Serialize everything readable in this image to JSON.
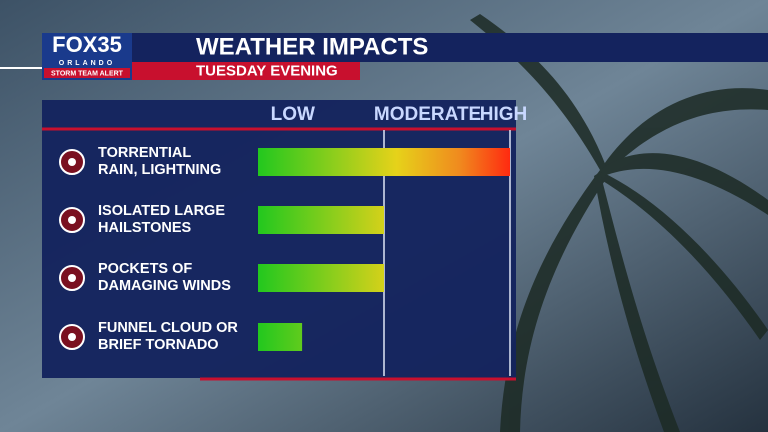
{
  "logo": {
    "brand": "FOX35",
    "city": "ORLANDO",
    "tag": "STORM TEAM ALERT"
  },
  "chart_data": {
    "type": "bar",
    "orientation": "horizontal",
    "title": "WEATHER IMPACTS",
    "subtitle": "TUESDAY EVENING",
    "categories": [
      "TORRENTIAL\nRAIN, LIGHTNING",
      "ISOLATED LARGE\nHAILSTONES",
      "POCKETS OF\nDAMAGING WINDS",
      "FUNNEL CLOUD OR\nBRIEF TORNADO"
    ],
    "values": [
      2,
      1,
      1,
      0.35
    ],
    "xlim": [
      0,
      2
    ],
    "xticks": [
      {
        "value": 0.1,
        "label": "LOW"
      },
      {
        "value": 0.92,
        "label": "MODERATE"
      },
      {
        "value": 1.76,
        "label": "HIGH"
      }
    ],
    "gridlines": [
      1,
      2
    ],
    "colors": [
      "#22c81e",
      "#e6d21a",
      "#f08a1e",
      "#ff2a10"
    ]
  }
}
